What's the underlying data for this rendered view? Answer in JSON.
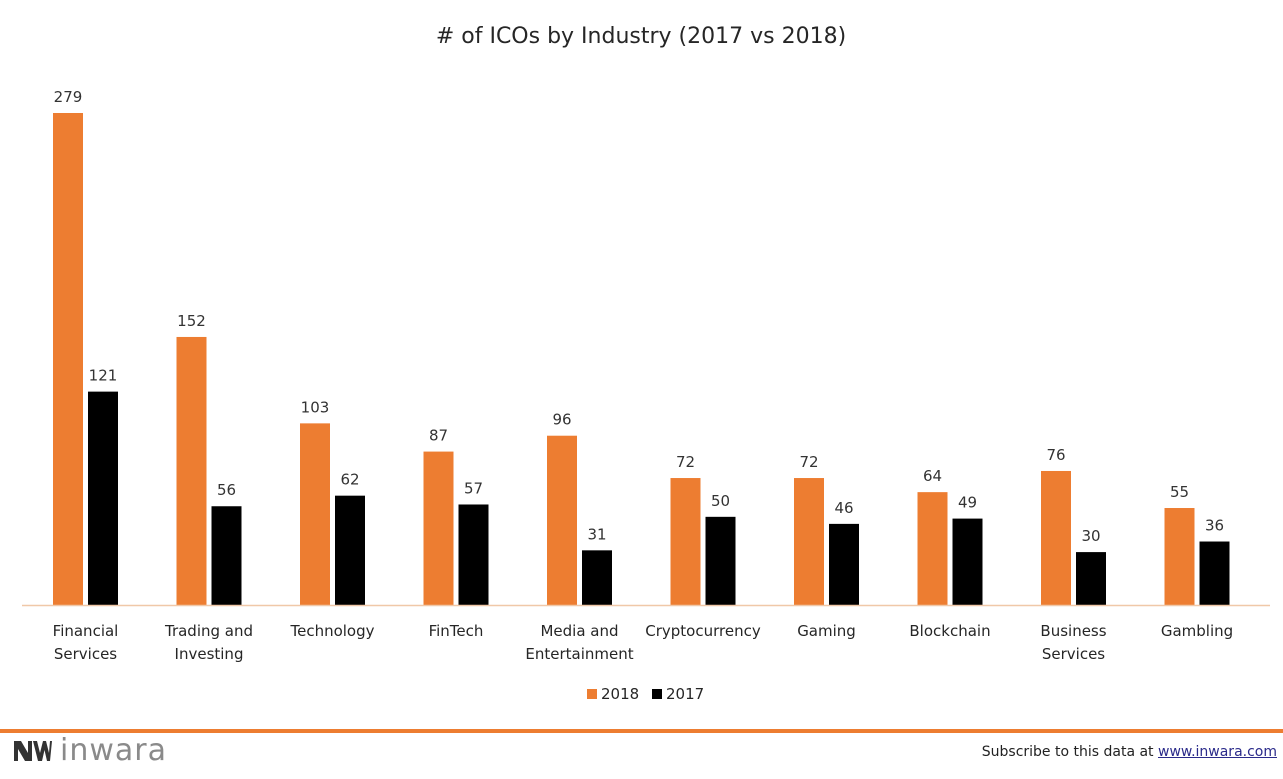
{
  "chart_data": {
    "type": "bar",
    "title": "# of ICOs by Industry (2017 vs 2018)",
    "categories": [
      "Financial Services",
      "Trading and Investing",
      "Technology",
      "FinTech",
      "Media and Entertainment",
      "Cryptocurrency",
      "Gaming",
      "Blockchain",
      "Business Services",
      "Gambling"
    ],
    "category_lines": [
      [
        "Financial",
        "Services"
      ],
      [
        "Trading and",
        "Investing"
      ],
      [
        "Technology"
      ],
      [
        "FinTech"
      ],
      [
        "Media and",
        "Entertainment"
      ],
      [
        "Cryptocurrency"
      ],
      [
        "Gaming"
      ],
      [
        "Blockchain"
      ],
      [
        "Business",
        "Services"
      ],
      [
        "Gambling"
      ]
    ],
    "series": [
      {
        "name": "2018",
        "color": "#ed7d31",
        "values": [
          279,
          152,
          103,
          87,
          96,
          72,
          72,
          64,
          76,
          55
        ]
      },
      {
        "name": "2017",
        "color": "#000000",
        "values": [
          121,
          56,
          62,
          57,
          31,
          50,
          46,
          49,
          30,
          36
        ]
      }
    ],
    "xlabel": "",
    "ylabel": "",
    "ylim": [
      0,
      279
    ],
    "grid": false,
    "data_labels": true,
    "legend": "bottom-center"
  },
  "footer": {
    "brand": "inwara",
    "subscribe_prefix": "Subscribe to this data at ",
    "subscribe_link": "www.inwara.com",
    "accent_color": "#ed7d31"
  }
}
